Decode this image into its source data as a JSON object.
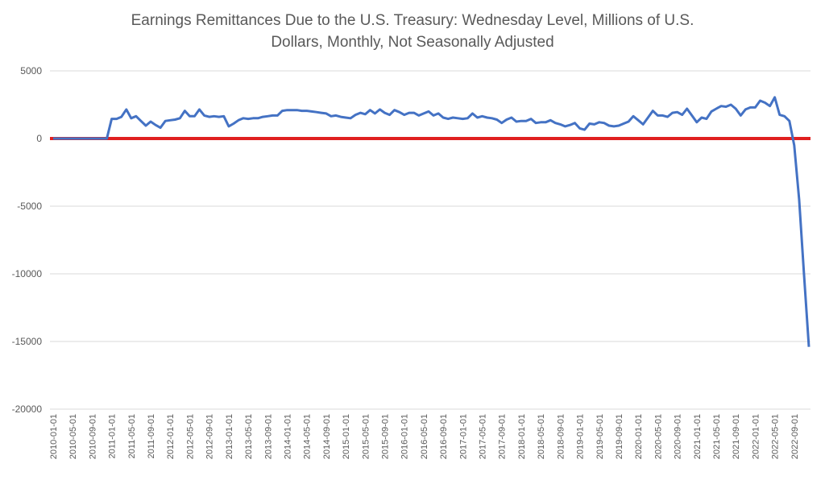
{
  "chart_data": {
    "type": "line",
    "title_lines": [
      "Earnings Remittances Due to the U.S. Treasury: Wednesday Level, Millions of U.S.",
      "Dollars, Monthly, Not Seasonally Adjusted"
    ],
    "ylim": [
      -20000,
      5000
    ],
    "y_ticks": [
      5000,
      0,
      -5000,
      -10000,
      -15000,
      -20000
    ],
    "grid": true,
    "x_tick_labels": [
      "2010-01-01",
      "2010-05-01",
      "2010-09-01",
      "2011-01-01",
      "2011-05-01",
      "2011-09-01",
      "2012-01-01",
      "2012-05-01",
      "2012-09-01",
      "2013-01-01",
      "2013-05-01",
      "2013-09-01",
      "2014-01-01",
      "2014-05-01",
      "2014-09-01",
      "2015-01-01",
      "2015-05-01",
      "2015-09-01",
      "2016-01-01",
      "2016-05-01",
      "2016-09-01",
      "2017-01-01",
      "2017-05-01",
      "2017-09-01",
      "2018-01-01",
      "2018-05-01",
      "2018-09-01",
      "2019-01-01",
      "2019-05-01",
      "2019-09-01",
      "2020-01-01",
      "2020-05-01",
      "2020-09-01",
      "2021-01-01",
      "2021-05-01",
      "2021-09-01",
      "2022-01-01",
      "2022-05-01",
      "2022-09-01"
    ],
    "x_start": "2010-01-01",
    "series": [
      {
        "color": "#4472c4",
        "values": [
          0,
          0,
          0,
          0,
          0,
          0,
          0,
          0,
          0,
          0,
          0,
          0,
          1450,
          1450,
          1600,
          2150,
          1500,
          1650,
          1300,
          950,
          1250,
          1000,
          800,
          1300,
          1350,
          1400,
          1500,
          2050,
          1650,
          1650,
          2150,
          1700,
          1600,
          1650,
          1600,
          1650,
          900,
          1100,
          1350,
          1500,
          1450,
          1500,
          1500,
          1600,
          1650,
          1700,
          1700,
          2050,
          2100,
          2100,
          2100,
          2050,
          2050,
          2000,
          1950,
          1900,
          1850,
          1650,
          1700,
          1600,
          1550,
          1500,
          1750,
          1900,
          1800,
          2100,
          1850,
          2150,
          1900,
          1750,
          2100,
          1950,
          1750,
          1900,
          1900,
          1700,
          1850,
          2000,
          1700,
          1850,
          1550,
          1450,
          1550,
          1500,
          1450,
          1500,
          1850,
          1550,
          1650,
          1550,
          1500,
          1400,
          1150,
          1400,
          1550,
          1250,
          1300,
          1300,
          1450,
          1150,
          1200,
          1200,
          1350,
          1150,
          1050,
          900,
          1000,
          1150,
          750,
          650,
          1100,
          1050,
          1200,
          1150,
          950,
          900,
          950,
          1100,
          1250,
          1650,
          1350,
          1050,
          1550,
          2050,
          1700,
          1700,
          1600,
          1900,
          1950,
          1750,
          2200,
          1700,
          1200,
          1550,
          1450,
          2000,
          2200,
          2400,
          2350,
          2500,
          2200,
          1700,
          2150,
          2300,
          2300,
          2800,
          2650,
          2400,
          3050,
          1750,
          1650,
          1300,
          -500,
          -4500,
          -10000,
          -15400
        ]
      },
      {
        "color": "#e02020",
        "values": [
          0,
          0
        ]
      }
    ]
  }
}
